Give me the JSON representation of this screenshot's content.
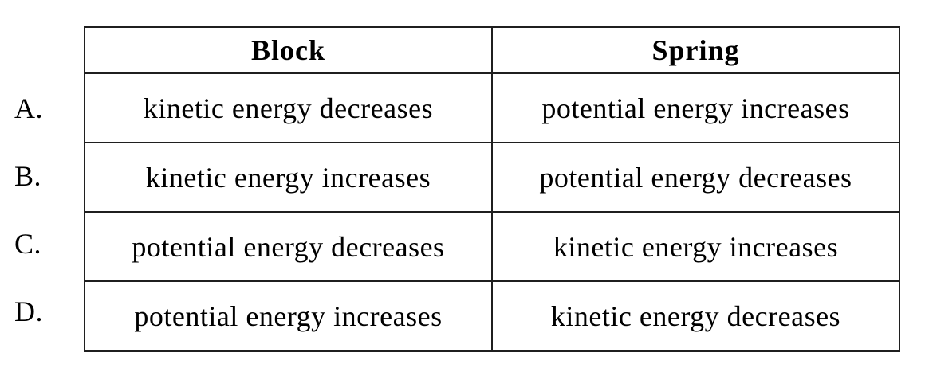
{
  "table": {
    "headers": {
      "block": "Block",
      "spring": "Spring"
    },
    "rows": [
      {
        "label": "A.",
        "block": "kinetic energy decreases",
        "spring": "potential energy increases"
      },
      {
        "label": "B.",
        "block": "kinetic energy increases",
        "spring": "potential energy decreases"
      },
      {
        "label": "C.",
        "block": "potential energy decreases",
        "spring": "kinetic energy increases"
      },
      {
        "label": "D.",
        "block": "potential energy increases",
        "spring": "kinetic energy decreases"
      }
    ]
  },
  "colors": {
    "border": "#1f1f1f",
    "text": "#000000",
    "background": "#ffffff"
  }
}
